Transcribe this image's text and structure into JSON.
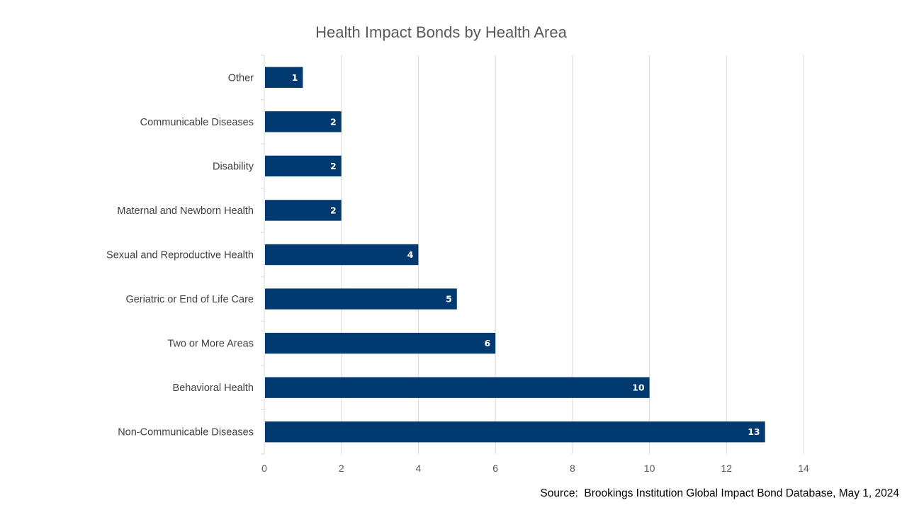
{
  "chart_data": {
    "type": "bar",
    "orientation": "horizontal",
    "title": "Health Impact Bonds by Health Area",
    "xlabel": "",
    "ylabel": "",
    "categories": [
      "Non-Communicable Diseases",
      "Behavioral Health",
      "Two or More Areas",
      "Geriatric or End of Life Care",
      "Sexual and Reproductive Health",
      "Maternal and Newborn Health",
      "Disability",
      "Communicable Diseases",
      "Other"
    ],
    "values": [
      13,
      10,
      6,
      5,
      4,
      2,
      2,
      2,
      1
    ],
    "xlim": [
      0,
      14
    ],
    "x_ticks": [
      0,
      2,
      4,
      6,
      8,
      10,
      12,
      14
    ],
    "grid": "vertical",
    "legend": "none",
    "data_labels": true,
    "bar_color": "#003A70"
  },
  "source": "Source:  Brookings Institution Global Impact Bond Database, May 1, 2024"
}
